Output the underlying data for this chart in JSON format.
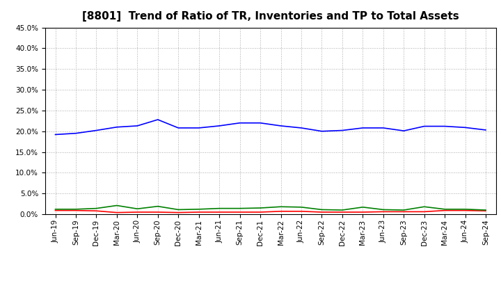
{
  "title": "[8801]  Trend of Ratio of TR, Inventories and TP to Total Assets",
  "labels": [
    "Jun-19",
    "Sep-19",
    "Dec-19",
    "Mar-20",
    "Jun-20",
    "Sep-20",
    "Dec-20",
    "Mar-21",
    "Jun-21",
    "Sep-21",
    "Dec-21",
    "Mar-22",
    "Jun-22",
    "Sep-22",
    "Dec-22",
    "Mar-23",
    "Jun-23",
    "Sep-23",
    "Dec-23",
    "Mar-24",
    "Jun-24",
    "Sep-24"
  ],
  "trade_receivables": [
    0.009,
    0.009,
    0.008,
    0.004,
    0.005,
    0.005,
    0.004,
    0.005,
    0.005,
    0.005,
    0.005,
    0.007,
    0.007,
    0.005,
    0.005,
    0.005,
    0.006,
    0.006,
    0.006,
    0.009,
    0.009,
    0.008
  ],
  "inventories": [
    0.192,
    0.195,
    0.202,
    0.21,
    0.213,
    0.228,
    0.208,
    0.208,
    0.213,
    0.22,
    0.22,
    0.213,
    0.208,
    0.2,
    0.202,
    0.208,
    0.208,
    0.201,
    0.212,
    0.212,
    0.209,
    0.203
  ],
  "trade_payables": [
    0.012,
    0.012,
    0.014,
    0.021,
    0.013,
    0.019,
    0.011,
    0.012,
    0.014,
    0.014,
    0.015,
    0.018,
    0.017,
    0.011,
    0.01,
    0.017,
    0.011,
    0.01,
    0.018,
    0.012,
    0.012,
    0.01
  ],
  "ylim": [
    0.0,
    0.45
  ],
  "yticks": [
    0.0,
    0.05,
    0.1,
    0.15,
    0.2,
    0.25,
    0.3,
    0.35,
    0.4,
    0.45
  ],
  "tr_color": "#ff0000",
  "inv_color": "#0000ff",
  "tp_color": "#008000",
  "bg_color": "#ffffff",
  "plot_bg_color": "#ffffff",
  "grid_color": "#aaaaaa",
  "title_fontsize": 11,
  "tick_fontsize": 7.5,
  "legend_fontsize": 9
}
